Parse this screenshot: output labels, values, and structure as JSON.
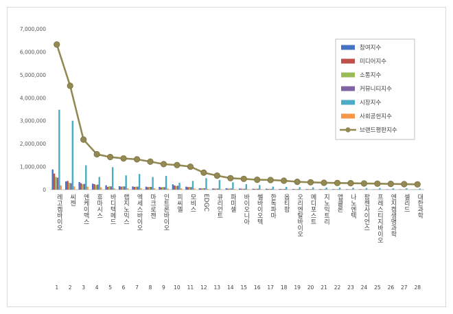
{
  "chart_data": {
    "type": "bar",
    "title": "",
    "xlabel": "",
    "ylabel": "",
    "ylim": [
      0,
      7000000
    ],
    "yticks": [
      "0",
      "1,000,000",
      "2,000,000",
      "3,000,000",
      "4,000,000",
      "5,000,000",
      "6,000,000",
      "7,000,000"
    ],
    "grid": false,
    "legend_position": "right",
    "ranks": [
      "1",
      "2",
      "3",
      "4",
      "5",
      "6",
      "7",
      "8",
      "9",
      "10",
      "11",
      "12",
      "13",
      "14",
      "15",
      "16",
      "17",
      "18",
      "19",
      "20",
      "21",
      "22",
      "23",
      "24",
      "25",
      "26",
      "27",
      "28"
    ],
    "categories": [
      "레고켐바이오",
      "씨젠",
      "엔케이맥스",
      "휴마시스",
      "바디텍메드",
      "랩지노믹스",
      "엑세스바이오",
      "마크로젠",
      "인트론바이오",
      "피씨엘",
      "모비스",
      "EDGC",
      "큐리언트",
      "파미셀",
      "바이오니아",
      "쎌바이오텍",
      "한독파마",
      "옵티팜",
      "오리엔탈바이오",
      "메디포스트",
      "지노믹트리",
      "앱클론",
      "나노엔텍",
      "팜젠사이언스",
      "프레스티지바이오",
      "엔지켐생명과학",
      "셀리드",
      "대한과학"
    ],
    "series": [
      {
        "name": "참여지수",
        "color": "#4472c4",
        "values": [
          880000,
          360000,
          330000,
          260000,
          190000,
          150000,
          140000,
          130000,
          120000,
          230000,
          130000,
          60000,
          50000,
          60000,
          50000,
          40000,
          40000,
          30000,
          30000,
          25000,
          25000,
          25000,
          20000,
          20000,
          15000,
          15000,
          15000,
          10000
        ]
      },
      {
        "name": "미디어지수",
        "color": "#c0504d",
        "values": [
          700000,
          380000,
          280000,
          240000,
          120000,
          130000,
          120000,
          110000,
          100000,
          180000,
          110000,
          50000,
          40000,
          40000,
          40000,
          30000,
          30000,
          25000,
          20000,
          20000,
          20000,
          15000,
          15000,
          15000,
          10000,
          10000,
          10000,
          8000
        ]
      },
      {
        "name": "소통지수",
        "color": "#9bbb59",
        "values": [
          550000,
          300000,
          240000,
          200000,
          150000,
          140000,
          130000,
          120000,
          110000,
          160000,
          120000,
          60000,
          50000,
          50000,
          40000,
          40000,
          35000,
          30000,
          25000,
          25000,
          20000,
          20000,
          20000,
          15000,
          15000,
          12000,
          12000,
          10000
        ]
      },
      {
        "name": "커뮤니티지수",
        "color": "#8064a2",
        "values": [
          520000,
          280000,
          250000,
          220000,
          140000,
          140000,
          130000,
          120000,
          110000,
          170000,
          110000,
          60000,
          50000,
          50000,
          40000,
          40000,
          30000,
          30000,
          25000,
          20000,
          20000,
          20000,
          15000,
          15000,
          12000,
          12000,
          10000,
          8000
        ]
      },
      {
        "name": "시장지수",
        "color": "#4bacc6",
        "values": [
          3480000,
          3000000,
          1060000,
          550000,
          980000,
          620000,
          680000,
          550000,
          600000,
          300000,
          380000,
          500000,
          420000,
          320000,
          240000,
          200000,
          130000,
          120000,
          110000,
          100000,
          90000,
          90000,
          80000,
          70000,
          70000,
          60000,
          60000,
          50000
        ]
      },
      {
        "name": "사회공헌지수",
        "color": "#f79646",
        "values": [
          180000,
          140000,
          130000,
          100000,
          60000,
          60000,
          60000,
          60000,
          50000,
          60000,
          50000,
          30000,
          25000,
          25000,
          20000,
          20000,
          20000,
          15000,
          15000,
          12000,
          12000,
          12000,
          10000,
          10000,
          10000,
          8000,
          8000,
          8000
        ]
      },
      {
        "name": "브랜드평판지수",
        "color": "#938953",
        "type": "line",
        "values": [
          6320000,
          4520000,
          2180000,
          1540000,
          1420000,
          1360000,
          1320000,
          1220000,
          1110000,
          1070000,
          1000000,
          740000,
          610000,
          500000,
          470000,
          430000,
          420000,
          390000,
          340000,
          320000,
          300000,
          290000,
          280000,
          270000,
          260000,
          250000,
          240000,
          230000
        ]
      }
    ]
  }
}
